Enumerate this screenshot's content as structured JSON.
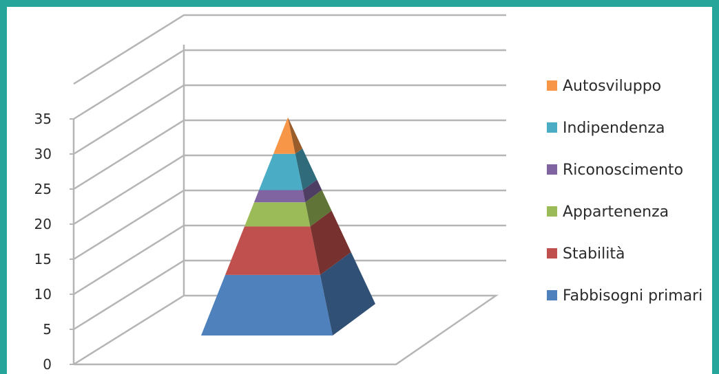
{
  "chart_data": {
    "type": "pyramid",
    "title": "",
    "xlabel": "",
    "ylabel": "",
    "ylim": [
      0,
      35
    ],
    "y_ticks": [
      "0",
      "5",
      "10",
      "15",
      "20",
      "25",
      "30",
      "35"
    ],
    "grid": true,
    "legend_position": "right",
    "series": [
      {
        "name": "Fabbisogni primari",
        "value": 10,
        "color": "#4f81bd"
      },
      {
        "name": "Stabilità",
        "value": 8,
        "color": "#c0504d"
      },
      {
        "name": "Appartenenza",
        "value": 4,
        "color": "#9bbb59"
      },
      {
        "name": "Riconoscimento",
        "value": 2,
        "color": "#8064a2"
      },
      {
        "name": "Indipendenza",
        "value": 6,
        "color": "#4bacc6"
      },
      {
        "name": "Autosviluppo",
        "value": 6,
        "color": "#f79646"
      }
    ]
  }
}
